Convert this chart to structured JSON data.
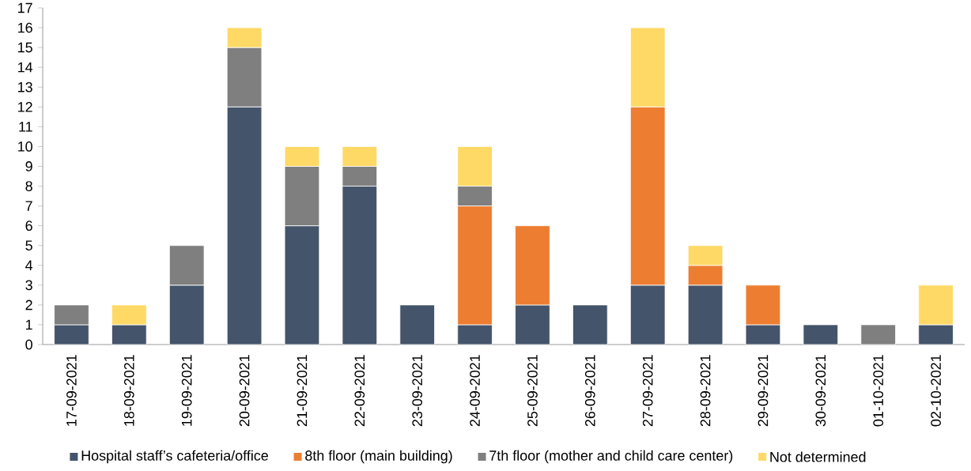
{
  "chart_data": {
    "type": "bar",
    "stacked": true,
    "legend": "bottom",
    "grid": false,
    "categories": [
      "17-09-2021",
      "18-09-2021",
      "19-09-2021",
      "20-09-2021",
      "21-09-2021",
      "22-09-2021",
      "23-09-2021",
      "24-09-2021",
      "25-09-2021",
      "26-09-2021",
      "27-09-2021",
      "28-09-2021",
      "29-09-2021",
      "30-09-2021",
      "01-10-2021",
      "02-10-2021"
    ],
    "ylim": [
      0,
      17
    ],
    "yticks": [
      0,
      1,
      2,
      3,
      4,
      5,
      6,
      7,
      8,
      9,
      10,
      11,
      12,
      13,
      14,
      15,
      16,
      17
    ],
    "series": [
      {
        "name": "Hospital staff’s cafeteria/office",
        "color": "#44546a",
        "values": [
          1,
          1,
          3,
          12,
          6,
          8,
          2,
          1,
          2,
          2,
          3,
          3,
          1,
          1,
          0,
          1
        ]
      },
      {
        "name": "8th floor (main building)",
        "color": "#ed7d31",
        "values": [
          0,
          0,
          0,
          0,
          0,
          0,
          0,
          6,
          4,
          0,
          9,
          1,
          2,
          0,
          0,
          0
        ]
      },
      {
        "name": "7th floor (mother and child care center)",
        "color": "#7f7f7f",
        "values": [
          1,
          0,
          2,
          3,
          3,
          1,
          0,
          1,
          0,
          0,
          0,
          0,
          0,
          0,
          1,
          0
        ]
      },
      {
        "name": "Not determined",
        "color": "#ffd966",
        "values": [
          0,
          1,
          0,
          1,
          1,
          1,
          0,
          2,
          0,
          0,
          4,
          1,
          0,
          0,
          0,
          2
        ]
      }
    ]
  }
}
